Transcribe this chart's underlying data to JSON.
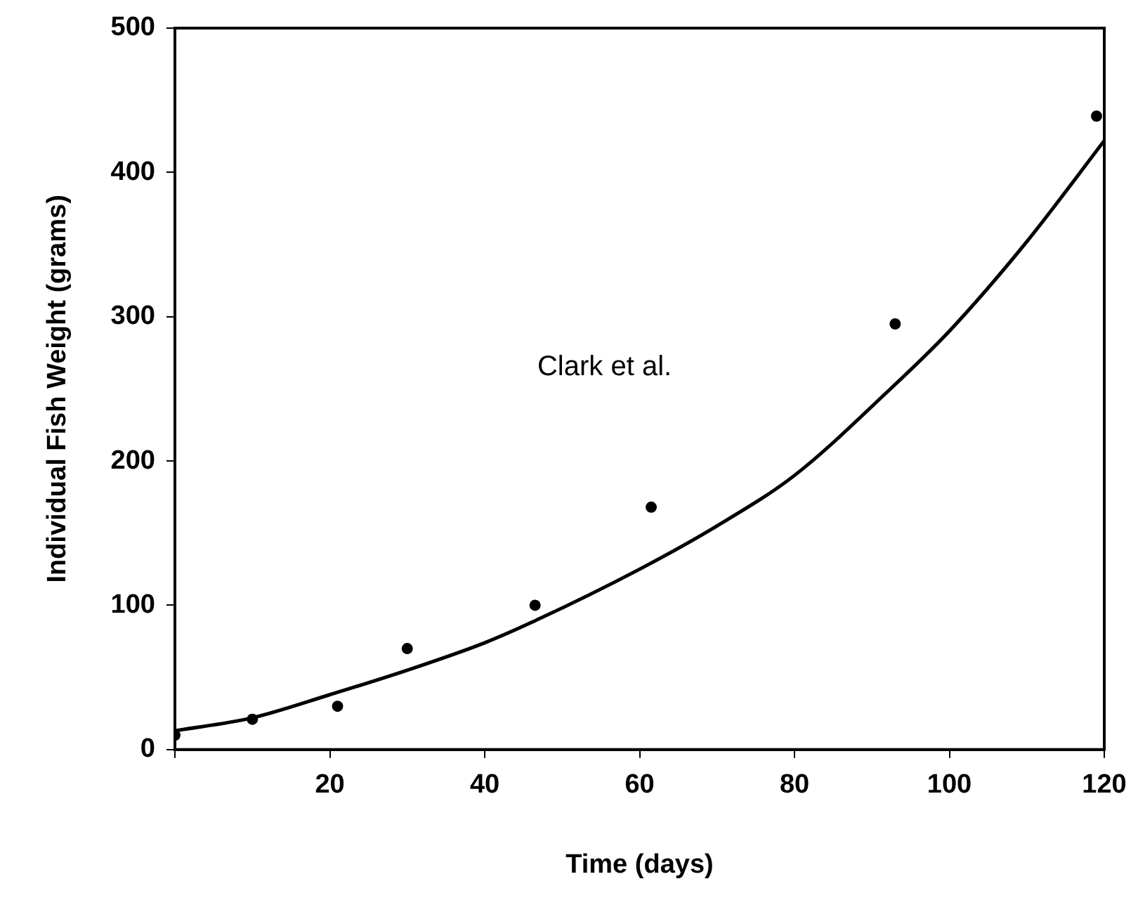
{
  "chart_data": {
    "type": "scatter",
    "xlabel": "Time (days)",
    "ylabel": "Individual Fish Weight (grams)",
    "annotations": [
      "Clark et al."
    ],
    "xlim": [
      0,
      120
    ],
    "xticks": [
      {
        "value": 0,
        "label": null
      },
      20,
      40,
      60,
      80,
      100,
      120
    ],
    "ylim": [
      0,
      500
    ],
    "yticks": [
      0,
      100,
      200,
      300,
      400,
      500
    ],
    "grid": false,
    "legend": false,
    "marker": "circle",
    "series": [
      {
        "color": "#000000",
        "x": [
          0,
          10,
          21,
          30,
          46.5,
          61.5,
          93,
          119
        ],
        "values": [
          10,
          21,
          30,
          70,
          100,
          168,
          295,
          439
        ]
      },
      {
        "type": "line",
        "color": "#000000",
        "marker": "none",
        "x": [
          0,
          10,
          20,
          30,
          40,
          46,
          60,
          70,
          80,
          92,
          100,
          110,
          120
        ],
        "values": [
          13,
          22,
          38,
          55,
          74,
          88,
          125,
          155,
          190,
          248,
          290,
          352,
          422
        ]
      }
    ]
  }
}
